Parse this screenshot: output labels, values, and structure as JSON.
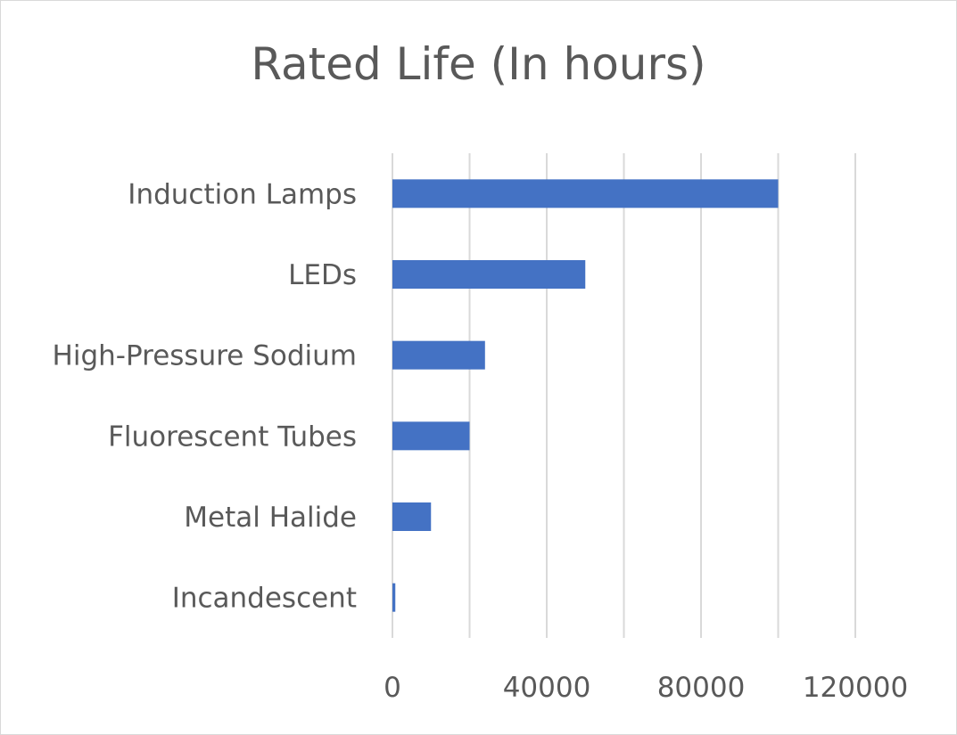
{
  "chart_data": {
    "type": "bar",
    "orientation": "horizontal",
    "title": "Rated Life (In hours)",
    "xlabel": "",
    "ylabel": "",
    "categories": [
      "Incandescent",
      "Metal Halide",
      "Fluorescent Tubes",
      "High-Pressure Sodium",
      "LEDs",
      "Induction Lamps"
    ],
    "values": [
      750,
      10000,
      20000,
      24000,
      50000,
      100000
    ],
    "xlim": [
      0,
      120000
    ],
    "xticks": [
      "0",
      "40000",
      "80000",
      "120000"
    ],
    "xtick_values": [
      0,
      40000,
      80000,
      120000
    ],
    "gridlines": [
      0,
      20000,
      40000,
      60000,
      80000,
      100000,
      120000
    ],
    "grid": "vertical",
    "legend": "none",
    "colors": {
      "bar": "#4472C4",
      "grid": "#d9d9d9",
      "text": "#595959"
    }
  }
}
